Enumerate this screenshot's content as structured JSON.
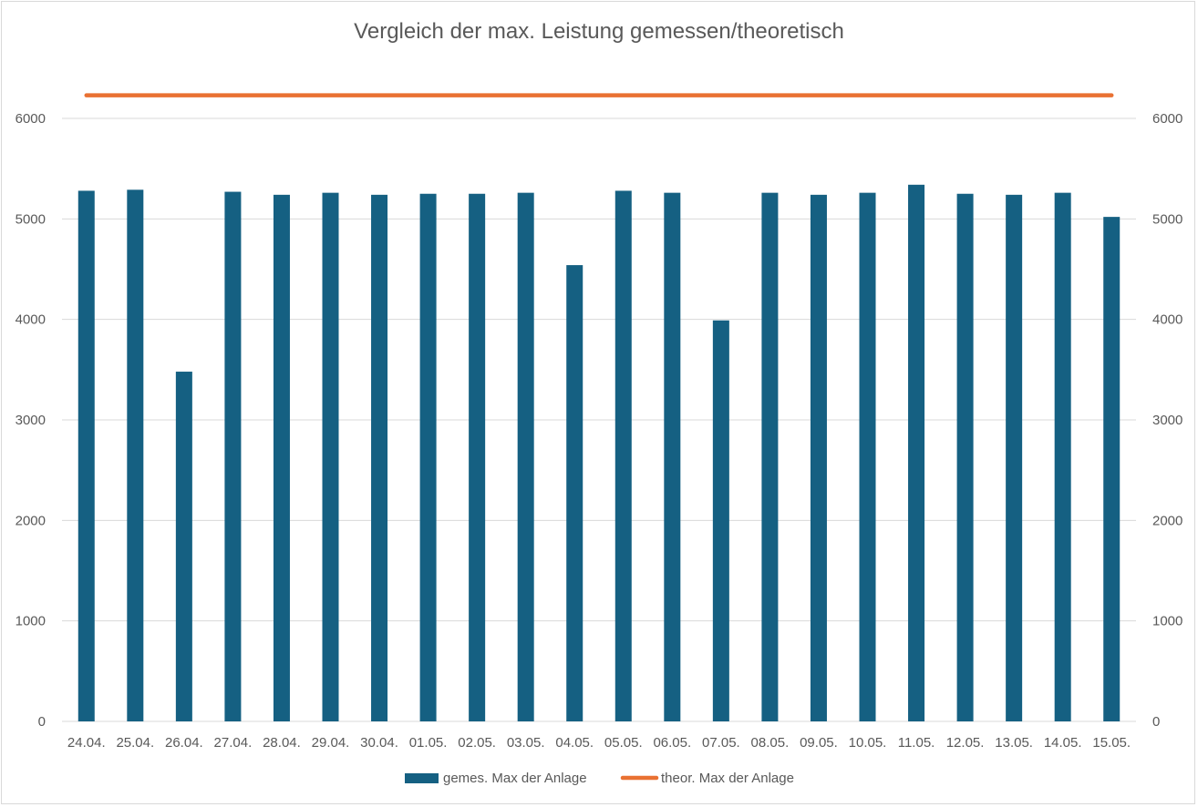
{
  "chart_data": {
    "type": "bar",
    "title": "Vergleich der max. Leistung gemessen/theoretisch",
    "categories": [
      "24.04.",
      "25.04.",
      "26.04.",
      "27.04.",
      "28.04.",
      "29.04.",
      "30.04.",
      "01.05.",
      "02.05.",
      "03.05.",
      "04.05.",
      "05.05.",
      "06.05.",
      "07.05.",
      "08.05.",
      "09.05.",
      "10.05.",
      "11.05.",
      "12.05.",
      "13.05.",
      "14.05.",
      "15.05."
    ],
    "series": [
      {
        "name": "gemes. Max der Anlage",
        "type": "bar",
        "axis": "left",
        "color": "#156082",
        "values": [
          5280,
          5290,
          3480,
          5270,
          5240,
          5260,
          5240,
          5250,
          5250,
          5260,
          4540,
          5280,
          5260,
          3990,
          5260,
          5240,
          5260,
          5340,
          5250,
          5240,
          5260,
          5020
        ]
      },
      {
        "name": "theor. Max der Anlage",
        "type": "line",
        "axis": "right",
        "color": "#E97132",
        "values": [
          6230,
          6230,
          6230,
          6230,
          6230,
          6230,
          6230,
          6230,
          6230,
          6230,
          6230,
          6230,
          6230,
          6230,
          6230,
          6230,
          6230,
          6230,
          6230,
          6230,
          6230,
          6230
        ]
      }
    ],
    "y_left": {
      "min": 0,
      "max": 6000,
      "step": 1000,
      "ticks": [
        "0",
        "1000",
        "2000",
        "3000",
        "4000",
        "5000",
        "6000"
      ]
    },
    "y_right": {
      "min": 0,
      "max": 6000,
      "step": 1000,
      "ticks": [
        "0",
        "1000",
        "2000",
        "3000",
        "4000",
        "5000",
        "6000"
      ]
    },
    "grid": true,
    "legend": "bottom",
    "gridColor": "#d9d9d9"
  }
}
